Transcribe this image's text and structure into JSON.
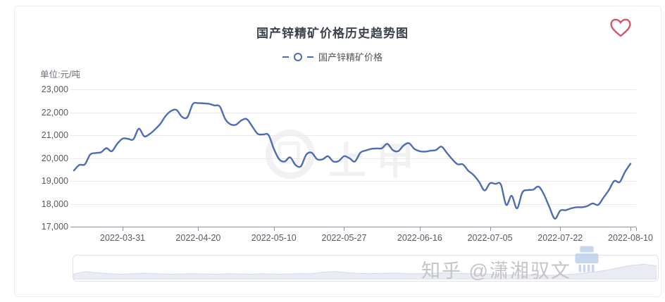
{
  "header": {
    "title": "国产锌精矿价格历史趋势图"
  },
  "legend": {
    "label": "国产锌精矿价格"
  },
  "y_axis": {
    "unit_label": "单位:元/吨"
  },
  "chart_data": {
    "type": "line",
    "title": "国产锌精矿价格历史趋势图",
    "ylabel": "单位:元/吨",
    "ylim": [
      17000,
      23000
    ],
    "y_ticks": [
      23000,
      22000,
      21000,
      20000,
      19000,
      18000,
      17000
    ],
    "x_ticks": [
      "2022-03-31",
      "2022-04-20",
      "2022-05-10",
      "2022-05-27",
      "2022-06-16",
      "2022-07-05",
      "2022-07-22",
      "2022-08-10"
    ],
    "grid": true,
    "legend_position": "top",
    "smooth": true,
    "series": [
      {
        "name": "国产锌精矿价格",
        "points": [
          [
            "2022-03-18",
            19460
          ],
          [
            "2022-03-21",
            19700
          ],
          [
            "2022-03-22",
            19720
          ],
          [
            "2022-03-23",
            20150
          ],
          [
            "2022-03-24",
            20220
          ],
          [
            "2022-03-25",
            20250
          ],
          [
            "2022-03-28",
            20430
          ],
          [
            "2022-03-29",
            20300
          ],
          [
            "2022-03-30",
            20620
          ],
          [
            "2022-03-31",
            20850
          ],
          [
            "2022-04-01",
            20840
          ],
          [
            "2022-04-04",
            20820
          ],
          [
            "2022-04-05",
            21280
          ],
          [
            "2022-04-06",
            20950
          ],
          [
            "2022-04-07",
            21050
          ],
          [
            "2022-04-08",
            21250
          ],
          [
            "2022-04-11",
            21500
          ],
          [
            "2022-04-12",
            21850
          ],
          [
            "2022-04-13",
            22060
          ],
          [
            "2022-04-14",
            22100
          ],
          [
            "2022-04-15",
            21800
          ],
          [
            "2022-04-18",
            21790
          ],
          [
            "2022-04-19",
            22360
          ],
          [
            "2022-04-20",
            22400
          ],
          [
            "2022-04-21",
            22390
          ],
          [
            "2022-04-22",
            22370
          ],
          [
            "2022-04-25",
            22300
          ],
          [
            "2022-04-26",
            22250
          ],
          [
            "2022-04-27",
            21700
          ],
          [
            "2022-04-28",
            21470
          ],
          [
            "2022-04-29",
            21460
          ],
          [
            "2022-05-02",
            21650
          ],
          [
            "2022-05-03",
            21700
          ],
          [
            "2022-05-04",
            21380
          ],
          [
            "2022-05-05",
            21060
          ],
          [
            "2022-05-06",
            21030
          ],
          [
            "2022-05-09",
            21010
          ],
          [
            "2022-05-10",
            20400
          ],
          [
            "2022-05-11",
            19940
          ],
          [
            "2022-05-12",
            19850
          ],
          [
            "2022-05-13",
            20030
          ],
          [
            "2022-05-16",
            19700
          ],
          [
            "2022-05-17",
            19640
          ],
          [
            "2022-05-18",
            20150
          ],
          [
            "2022-05-19",
            20230
          ],
          [
            "2022-05-20",
            19950
          ],
          [
            "2022-05-23",
            19940
          ],
          [
            "2022-05-24",
            20080
          ],
          [
            "2022-05-25",
            19850
          ],
          [
            "2022-05-26",
            19870
          ],
          [
            "2022-05-27",
            20080
          ],
          [
            "2022-05-30",
            19990
          ],
          [
            "2022-05-31",
            19850
          ],
          [
            "2022-06-01",
            20230
          ],
          [
            "2022-06-02",
            20330
          ],
          [
            "2022-06-03",
            20400
          ],
          [
            "2022-06-06",
            20420
          ],
          [
            "2022-06-07",
            20430
          ],
          [
            "2022-06-08",
            20620
          ],
          [
            "2022-06-09",
            20350
          ],
          [
            "2022-06-10",
            20300
          ],
          [
            "2022-06-13",
            20550
          ],
          [
            "2022-06-14",
            20650
          ],
          [
            "2022-06-15",
            20400
          ],
          [
            "2022-06-16",
            20300
          ],
          [
            "2022-06-17",
            20280
          ],
          [
            "2022-06-20",
            20320
          ],
          [
            "2022-06-21",
            20350
          ],
          [
            "2022-06-22",
            20500
          ],
          [
            "2022-06-23",
            20230
          ],
          [
            "2022-06-24",
            19950
          ],
          [
            "2022-06-27",
            19730
          ],
          [
            "2022-06-28",
            19720
          ],
          [
            "2022-06-29",
            19440
          ],
          [
            "2022-06-30",
            19250
          ],
          [
            "2022-07-01",
            18950
          ],
          [
            "2022-07-04",
            18580
          ],
          [
            "2022-07-05",
            18900
          ],
          [
            "2022-07-06",
            18870
          ],
          [
            "2022-07-07",
            18850
          ],
          [
            "2022-07-08",
            17950
          ],
          [
            "2022-07-11",
            18350
          ],
          [
            "2022-07-12",
            17800
          ],
          [
            "2022-07-13",
            18500
          ],
          [
            "2022-07-14",
            18600
          ],
          [
            "2022-07-15",
            18620
          ],
          [
            "2022-07-18",
            18750
          ],
          [
            "2022-07-19",
            18400
          ],
          [
            "2022-07-20",
            17850
          ],
          [
            "2022-07-21",
            17350
          ],
          [
            "2022-07-22",
            17700
          ],
          [
            "2022-07-25",
            17720
          ],
          [
            "2022-07-26",
            17800
          ],
          [
            "2022-07-27",
            17850
          ],
          [
            "2022-07-28",
            17850
          ],
          [
            "2022-07-29",
            17900
          ],
          [
            "2022-08-01",
            18020
          ],
          [
            "2022-08-02",
            17950
          ],
          [
            "2022-08-03",
            18270
          ],
          [
            "2022-08-04",
            18600
          ],
          [
            "2022-08-05",
            19000
          ],
          [
            "2022-08-08",
            18950
          ],
          [
            "2022-08-09",
            19400
          ],
          [
            "2022-08-10",
            19750
          ]
        ]
      }
    ]
  },
  "minimap": {
    "shadow": [
      0.2,
      0.33,
      0.27,
      0.22,
      0.2,
      0.22,
      0.25,
      0.22,
      0.2,
      0.21,
      0.23,
      0.21,
      0.2,
      0.22,
      0.21,
      0.2,
      0.22,
      0.2,
      0.21,
      0.23,
      0.22,
      0.3,
      0.34,
      0.28,
      0.24,
      0.22,
      0.24,
      0.26,
      0.23,
      0.22,
      0.24,
      0.26,
      0.25,
      0.23,
      0.22,
      0.2,
      0.17,
      0.15,
      0.16,
      0.15,
      0.14,
      0.16,
      0.2,
      0.26,
      0.33,
      0.42,
      0.55,
      0.65,
      0.7,
      0.62
    ]
  },
  "watermarks": {
    "center_logo_text": "上甲",
    "bottom_text": "知乎 @潇湘驭文"
  },
  "colors": {
    "line": "#4e6cb3",
    "heart": "#d5566b",
    "title": "#3d434d",
    "grid": "#e9e9ed",
    "axis": "#8d939c",
    "minimap_fill": "#e9ecf3",
    "minimap_stroke": "#d5dae6",
    "printer": "#b9cde9"
  }
}
